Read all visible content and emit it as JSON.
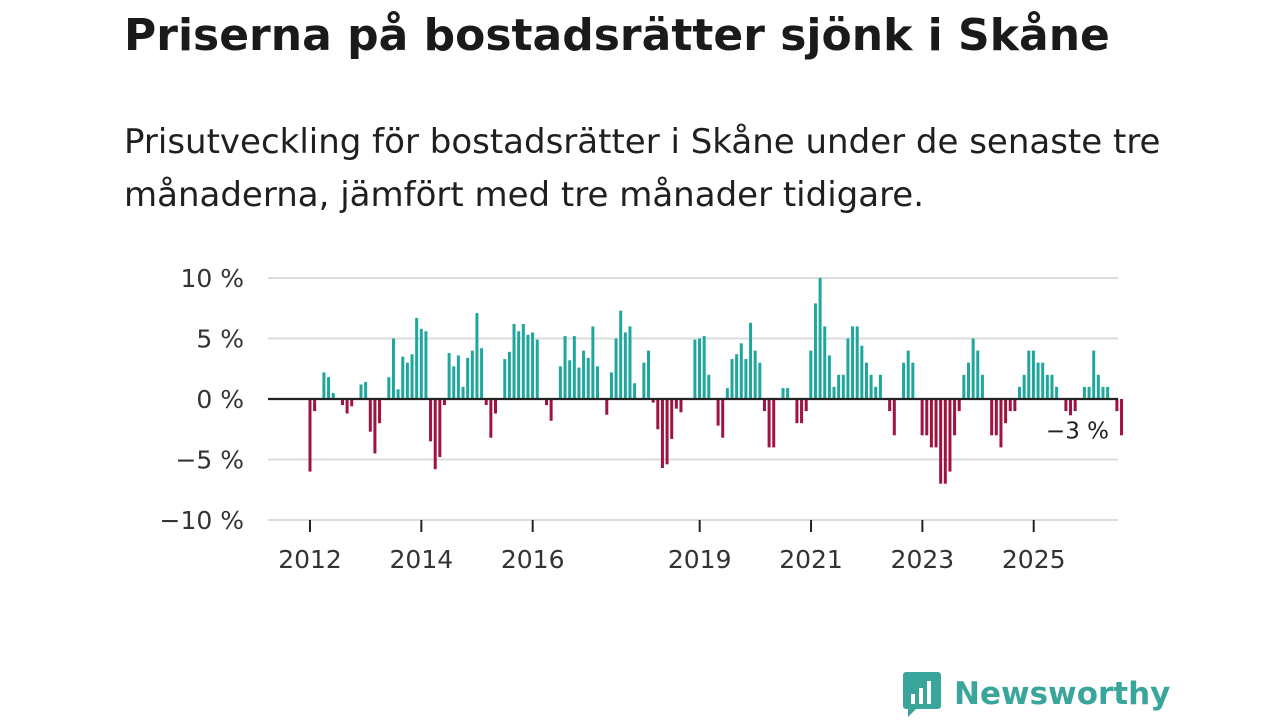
{
  "title": "Priserna på bostadsrätter sjönk i Skåne",
  "subtitle": "Prisutveckling för bostadsrätter i Skåne under de senaste tre månaderna, jämfört med tre månader tidigare.",
  "brand": {
    "name": "Newsworthy",
    "icon": "bar-chart-speech-bubble-icon"
  },
  "colors": {
    "positive": "#1fa79e",
    "negative": "#a0133f",
    "grid": "#dcdcdc",
    "zero": "#222222",
    "brand": "#3aa59a"
  },
  "chart_data": {
    "type": "bar",
    "title": "Priserna på bostadsrätter sjönk i Skåne",
    "xlabel": "",
    "ylabel": "",
    "ylim": [
      -10,
      10
    ],
    "yticks": [
      {
        "value": 10,
        "label": "10 %"
      },
      {
        "value": 5,
        "label": "5 %"
      },
      {
        "value": 0,
        "label": "0 %"
      },
      {
        "value": -5,
        "label": "−5 %"
      },
      {
        "value": -10,
        "label": "−10 %"
      }
    ],
    "xticks": [
      {
        "value": 2012,
        "label": "2012"
      },
      {
        "value": 2014,
        "label": "2014"
      },
      {
        "value": 2016,
        "label": "2016"
      },
      {
        "value": 2019,
        "label": "2019"
      },
      {
        "value": 2021,
        "label": "2021"
      },
      {
        "value": 2023,
        "label": "2023"
      },
      {
        "value": 2025,
        "label": "2025"
      }
    ],
    "x_start": 2012.0,
    "x_step": 0.0833,
    "values": [
      -6,
      -1,
      0,
      2.2,
      1.8,
      0.5,
      0,
      -0.5,
      -1.2,
      -0.6,
      0,
      1.2,
      1.4,
      -2.7,
      -4.5,
      -2,
      0,
      1.8,
      5,
      0.8,
      3.5,
      3,
      3.7,
      6.7,
      5.8,
      5.6,
      -3.5,
      -5.8,
      -4.8,
      -0.5,
      3.8,
      2.7,
      3.6,
      1,
      3.4,
      4,
      7.1,
      4.2,
      -0.5,
      -3.2,
      -1.2,
      0,
      3.3,
      3.9,
      6.2,
      5.6,
      6.2,
      5.3,
      5.5,
      4.9,
      0,
      -0.5,
      -1.8,
      0,
      2.7,
      5.2,
      3.2,
      5.2,
      2.6,
      4,
      3.4,
      6,
      2.7,
      0,
      -1.3,
      2.2,
      5,
      7.3,
      5.5,
      6,
      1.3,
      0,
      3,
      4,
      -0.3,
      -2.5,
      -5.7,
      -5.4,
      -3.3,
      -0.8,
      -1.1,
      0,
      0,
      4.9,
      5,
      5.2,
      2,
      0,
      -2.2,
      -3.2,
      0.9,
      3.3,
      3.7,
      4.6,
      3.3,
      6.3,
      4,
      3,
      -1,
      -4,
      -4,
      0,
      0.9,
      0.9,
      0,
      -2,
      -2,
      -1,
      4,
      7.9,
      10,
      6,
      3.6,
      1,
      2,
      2,
      5,
      6,
      6,
      4.4,
      3,
      2,
      1,
      2,
      0,
      -1,
      -3,
      0,
      3,
      4,
      3,
      0,
      -3,
      -3,
      -4,
      -4,
      -7,
      -7,
      -6,
      -3,
      -1,
      2,
      3,
      5,
      4,
      2,
      0,
      -3,
      -3,
      -4,
      -2,
      -1,
      -1,
      1,
      2,
      4,
      4,
      3,
      3,
      2,
      2,
      1,
      0,
      -1,
      -3,
      -1,
      0,
      1,
      1,
      4,
      2,
      1,
      1,
      0,
      -1,
      -3
    ],
    "annotation": {
      "label": "−3 %",
      "value": -3
    }
  }
}
